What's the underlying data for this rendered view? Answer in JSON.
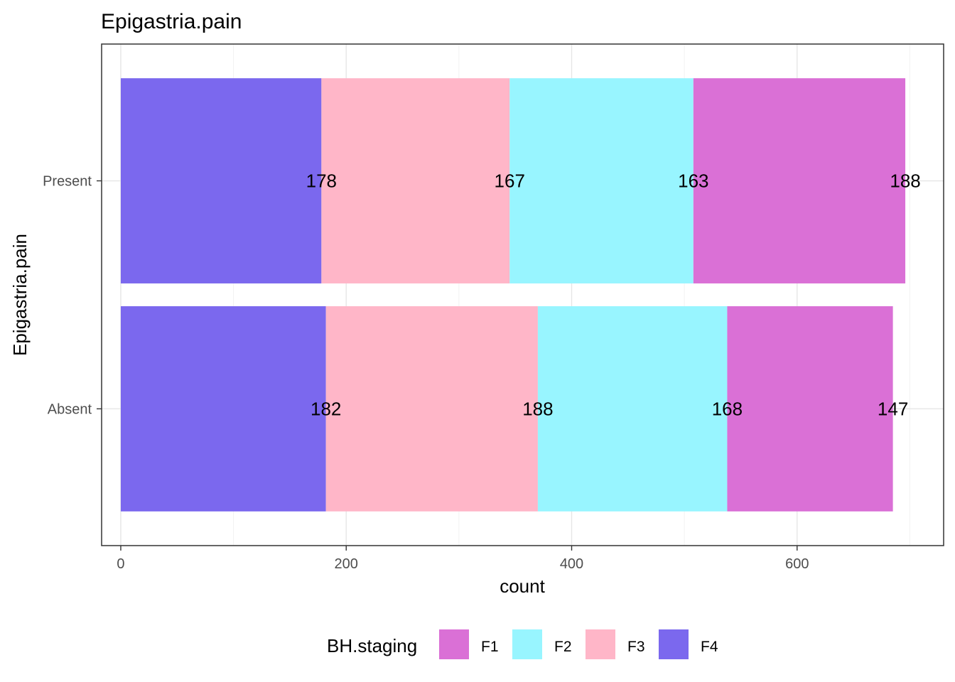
{
  "chart_data": {
    "type": "bar",
    "orientation": "horizontal",
    "stacked": true,
    "title": "Epigastria.pain",
    "xlabel": "count",
    "ylabel": "Epigastria.pain",
    "categories": [
      "Absent",
      "Present"
    ],
    "xlim": [
      -17,
      730
    ],
    "xticks": [
      0,
      200,
      400,
      600
    ],
    "grid": true,
    "series": [
      {
        "name": "F4",
        "color": "#7B68EE",
        "values": [
          182,
          178
        ]
      },
      {
        "name": "F3",
        "color": "#FFB6C8",
        "values": [
          188,
          167
        ]
      },
      {
        "name": "F2",
        "color": "#98F5FF",
        "values": [
          168,
          163
        ]
      },
      {
        "name": "F1",
        "color": "#DA70D6",
        "values": [
          147,
          188
        ]
      }
    ],
    "legend": {
      "title": "BH.staging",
      "position": "bottom",
      "order": [
        "F1",
        "F2",
        "F3",
        "F4"
      ]
    }
  }
}
